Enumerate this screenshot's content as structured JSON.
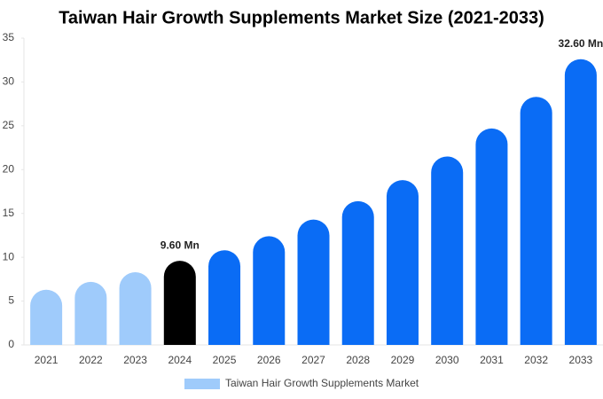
{
  "chart_data": {
    "type": "bar",
    "title": "Taiwan Hair Growth Supplements Market Size (2021-2033)",
    "categories": [
      "2021",
      "2022",
      "2023",
      "2024",
      "2025",
      "2026",
      "2027",
      "2028",
      "2029",
      "2030",
      "2031",
      "2032",
      "2033"
    ],
    "series": [
      {
        "name": "Taiwan Hair Growth Supplements Market",
        "color": "#9fcbfb",
        "colors": [
          "#9fcbfb",
          "#9fcbfb",
          "#9fcbfb",
          "#000000",
          "#0a6cf5",
          "#0a6cf5",
          "#0a6cf5",
          "#0a6cf5",
          "#0a6cf5",
          "#0a6cf5",
          "#0a6cf5",
          "#0a6cf5",
          "#0a6cf5"
        ],
        "values": [
          6.3,
          7.2,
          8.3,
          9.6,
          10.8,
          12.4,
          14.3,
          16.4,
          18.8,
          21.5,
          24.7,
          28.3,
          32.6
        ],
        "value_labels": [
          null,
          null,
          null,
          "9.60 Mn",
          null,
          null,
          null,
          null,
          null,
          null,
          null,
          null,
          "32.60 Mn"
        ]
      }
    ],
    "ylim": [
      0,
      35
    ],
    "yticks": [
      0,
      5,
      10,
      15,
      20,
      25,
      30,
      35
    ],
    "grid": false
  }
}
